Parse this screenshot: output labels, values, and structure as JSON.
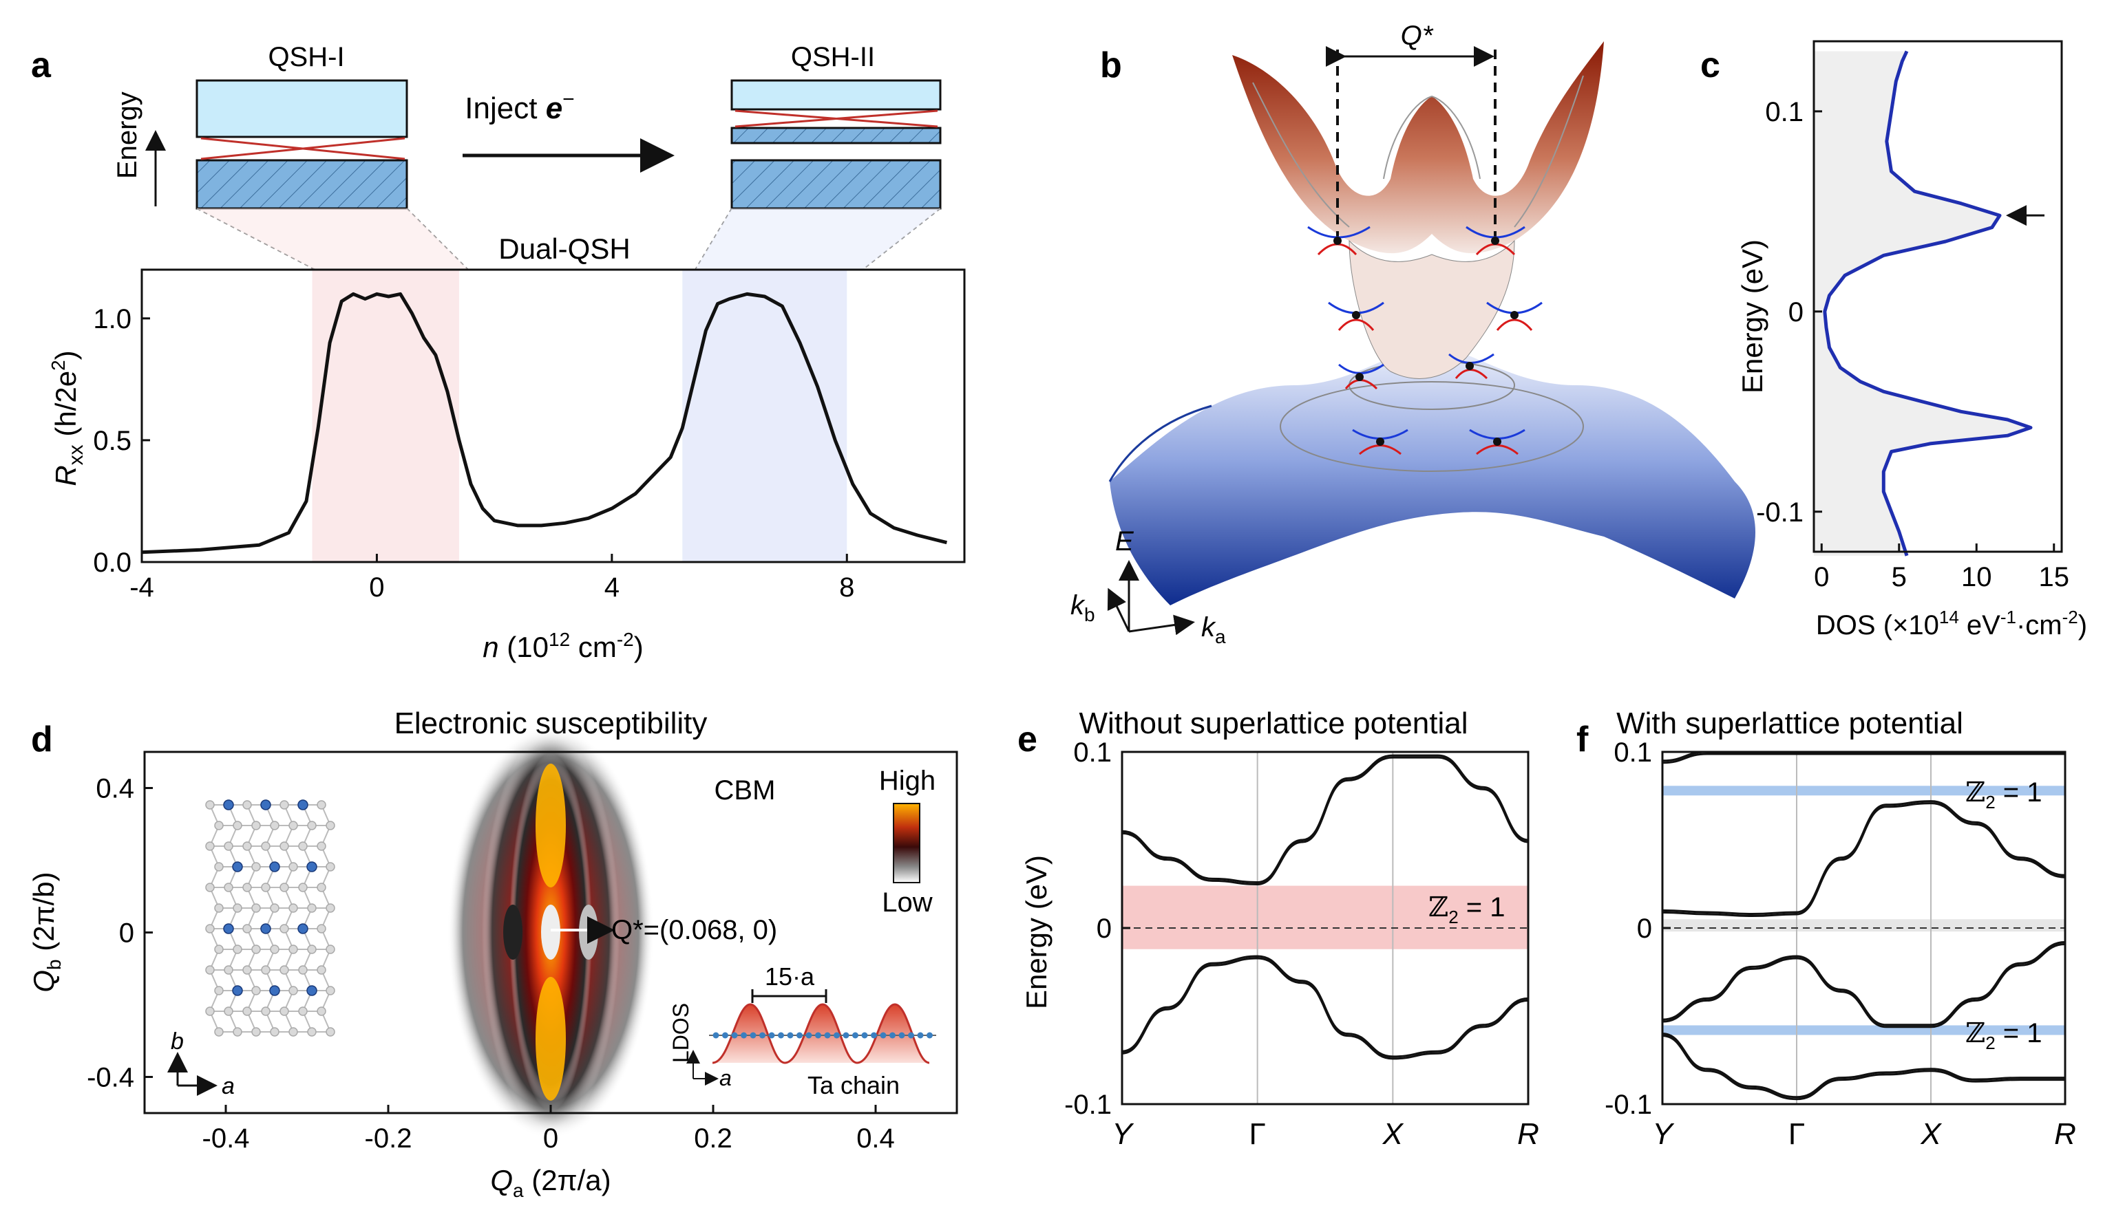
{
  "panels": {
    "a": {
      "letter": "a",
      "left_box_label": "QSH-I",
      "right_box_label": "QSH-II",
      "inject_label": "Inject ",
      "inject_e": "e",
      "inject_sup": "−",
      "energy_label": "Energy",
      "center_label": "Dual-QSH",
      "xlabel_main": "n",
      "xlabel_unit": " (10",
      "xlabel_exp": "12",
      "xlabel_unit2": " cm",
      "xlabel_exp2": "-2",
      "xlabel_close": ")",
      "ylabel_main": "R",
      "ylabel_sub": "xx",
      "ylabel_unit": " (h/2e",
      "ylabel_exp": "2",
      "ylabel_close": ")",
      "xticks": [
        "-4",
        "0",
        "4",
        "8"
      ],
      "yticks": [
        "0.0",
        "0.5",
        "1.0"
      ]
    },
    "b": {
      "letter": "b",
      "q_label": "Q*",
      "axis_E": "E",
      "axis_kb": "k",
      "axis_kb_sub": "b",
      "axis_ka": "k",
      "axis_ka_sub": "a"
    },
    "c": {
      "letter": "c",
      "ylabel": "Energy (eV)",
      "xlabel": "DOS (×10",
      "xlabel_exp": "14",
      "xlabel_mid": " eV",
      "xlabel_exp2": "-1",
      "xlabel_mid2": "·cm",
      "xlabel_exp3": "-2",
      "xlabel_close": ")",
      "yticks": [
        "0.1",
        "0",
        "-0.1"
      ],
      "xticks": [
        "0",
        "5",
        "10",
        "15"
      ]
    },
    "d": {
      "letter": "d",
      "title": "Electronic susceptibility",
      "cbm_label": "CBM",
      "high_label": "High",
      "low_label": "Low",
      "q_annot": "Q*=(0.068, 0)",
      "scale_label": "15·a",
      "ldos_label": "LDOS",
      "ta_chain_label": "Ta chain",
      "axis_b": "b",
      "axis_a": "a",
      "axis_a2": "a",
      "xlabel": "Q",
      "xlabel_sub": "a",
      "xlabel_unit": " (2π/a)",
      "ylabel": "Q",
      "ylabel_sub": "b",
      "ylabel_unit": " (2π/b)",
      "xticks": [
        "-0.4",
        "-0.2",
        "0",
        "0.2",
        "0.4"
      ],
      "yticks": [
        "0.4",
        "0",
        "-0.4"
      ]
    },
    "e": {
      "letter": "e",
      "title": "Without superlattice potential",
      "ylabel": "Energy (eV)",
      "z2_label": "ℤ",
      "z2_sub": "2",
      "z2_eq": " = 1",
      "yticks": [
        "0.1",
        "0",
        "-0.1"
      ],
      "xticks": [
        "Y",
        "Γ",
        "X",
        "R"
      ]
    },
    "f": {
      "letter": "f",
      "title": "With superlattice potential",
      "z2_label": "ℤ",
      "z2_sub": "2",
      "z2_eq": " = 1",
      "z2b_label": "ℤ",
      "z2b_sub": "2",
      "z2b_eq": " = 1",
      "yticks": [
        "0.1",
        "0",
        "-0.1"
      ],
      "xticks": [
        "Y",
        "Γ",
        "X",
        "R"
      ]
    }
  },
  "colors": {
    "red_band": "#b23a1a",
    "blue_band": "#1a3a9c",
    "dos_line": "#1f2fb0",
    "pink_region": "#fbe9ea",
    "blue_region": "#e8ecfb",
    "box_fill": "#c9ecfb",
    "hatch_fill": "#7fb3df",
    "z2_red": "#f7c9c9",
    "z2_blue": "#a9c8ee"
  },
  "chart_data": [
    {
      "type": "line",
      "panel": "a",
      "x": [
        -4,
        -3,
        -2,
        -1.5,
        -1.2,
        -1.0,
        -0.8,
        -0.6,
        -0.4,
        -0.2,
        0,
        0.2,
        0.4,
        0.6,
        0.8,
        1.0,
        1.2,
        1.4,
        1.6,
        1.8,
        2.0,
        2.4,
        2.8,
        3.2,
        3.6,
        4.0,
        4.4,
        4.8,
        5.0,
        5.2,
        5.4,
        5.6,
        5.8,
        6.0,
        6.3,
        6.6,
        6.9,
        7.2,
        7.5,
        7.8,
        8.1,
        8.4,
        8.8,
        9.2,
        9.7
      ],
      "y": [
        0.04,
        0.05,
        0.07,
        0.12,
        0.25,
        0.55,
        0.9,
        1.07,
        1.1,
        1.08,
        1.1,
        1.09,
        1.1,
        1.02,
        0.92,
        0.85,
        0.7,
        0.5,
        0.32,
        0.22,
        0.17,
        0.15,
        0.15,
        0.16,
        0.18,
        0.22,
        0.28,
        0.38,
        0.43,
        0.55,
        0.75,
        0.95,
        1.06,
        1.08,
        1.1,
        1.09,
        1.05,
        0.9,
        0.72,
        0.5,
        0.32,
        0.2,
        0.14,
        0.11,
        0.08
      ],
      "xlim": [
        -4,
        10
      ],
      "ylim": [
        0,
        1.2
      ],
      "shaded_x": [
        [
          -1.1,
          1.4
        ],
        [
          5.2,
          8.0
        ]
      ]
    },
    {
      "type": "line",
      "panel": "c",
      "x": [
        5.5,
        5.2,
        4.8,
        4.6,
        4.4,
        4.2,
        4.5,
        6.0,
        9.0,
        11.5,
        11.0,
        8.0,
        4.0,
        1.5,
        0.5,
        0.2,
        0.3,
        0.5,
        1.2,
        2.5,
        4.0,
        6.5,
        9.0,
        12.0,
        13.5,
        12.0,
        7.0,
        4.5,
        4.0,
        4.0,
        4.5,
        5.0,
        5.5
      ],
      "y": [
        0.13,
        0.125,
        0.115,
        0.105,
        0.095,
        0.085,
        0.07,
        0.06,
        0.054,
        0.048,
        0.042,
        0.035,
        0.028,
        0.018,
        0.008,
        0.0,
        -0.008,
        -0.018,
        -0.028,
        -0.035,
        -0.04,
        -0.045,
        -0.05,
        -0.054,
        -0.058,
        -0.062,
        -0.066,
        -0.07,
        -0.08,
        -0.09,
        -0.1,
        -0.11,
        -0.122
      ],
      "xlim": [
        -0.5,
        15.5
      ],
      "ylim": [
        -0.12,
        0.135
      ],
      "arrow_at_energy": 0.048
    },
    {
      "type": "line",
      "panel": "e",
      "x_labels": [
        "Y",
        "Γ",
        "X",
        "R"
      ],
      "ylim": [
        -0.1,
        0.1
      ],
      "series": [
        {
          "values": [
            0.055,
            0.04,
            0.028,
            0.026,
            0.05,
            0.085,
            0.098,
            0.098,
            0.08,
            0.05
          ]
        },
        {
          "values": [
            -0.07,
            -0.045,
            -0.02,
            -0.016,
            -0.03,
            -0.06,
            -0.073,
            -0.07,
            -0.055,
            -0.04
          ]
        }
      ],
      "z2_band": [
        -0.012,
        0.024
      ]
    },
    {
      "type": "line",
      "panel": "f",
      "x_labels": [
        "Y",
        "Γ",
        "X",
        "R"
      ],
      "ylim": [
        -0.1,
        0.1
      ],
      "series": [
        {
          "values": [
            0.01,
            0.009,
            0.008,
            0.009,
            0.04,
            0.07,
            0.072,
            0.06,
            0.04,
            0.03
          ]
        },
        {
          "values": [
            -0.052,
            -0.04,
            -0.022,
            -0.016,
            -0.035,
            -0.055,
            -0.055,
            -0.04,
            -0.02,
            -0.008
          ]
        },
        {
          "values": [
            0.095,
            0.1,
            0.1,
            0.1,
            0.1,
            0.1,
            0.1,
            0.1,
            0.1,
            0.1
          ]
        },
        {
          "values": [
            -0.06,
            -0.08,
            -0.09,
            -0.096,
            -0.085,
            -0.082,
            -0.08,
            -0.086,
            -0.085,
            -0.085
          ]
        }
      ],
      "z2_bands": [
        0.078,
        -0.058
      ]
    }
  ]
}
